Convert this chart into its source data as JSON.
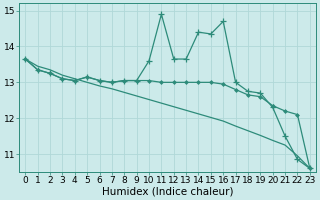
{
  "x": [
    0,
    1,
    2,
    3,
    4,
    5,
    6,
    7,
    8,
    9,
    10,
    11,
    12,
    13,
    14,
    15,
    16,
    17,
    18,
    19,
    20,
    21,
    22,
    23
  ],
  "line1": [
    13.65,
    13.35,
    13.25,
    13.1,
    13.05,
    13.15,
    13.05,
    13.0,
    13.05,
    13.05,
    13.6,
    14.9,
    13.65,
    13.65,
    14.4,
    14.35,
    14.7,
    13.0,
    12.75,
    12.7,
    12.3,
    11.5,
    10.85,
    10.6
  ],
  "line2": [
    13.65,
    13.35,
    13.25,
    13.1,
    13.05,
    13.15,
    13.05,
    13.0,
    13.05,
    13.05,
    13.05,
    13.0,
    13.0,
    13.0,
    13.0,
    13.0,
    12.95,
    12.8,
    12.65,
    12.6,
    12.35,
    12.2,
    12.1,
    10.6
  ],
  "line3": [
    13.65,
    13.45,
    13.35,
    13.2,
    13.1,
    13.0,
    12.9,
    12.82,
    12.72,
    12.62,
    12.52,
    12.42,
    12.32,
    12.22,
    12.12,
    12.02,
    11.92,
    11.78,
    11.65,
    11.52,
    11.38,
    11.25,
    10.95,
    10.6
  ],
  "color": "#2d8b7a",
  "bg_color": "#cceaea",
  "grid_color": "#b0d8d8",
  "xlabel": "Humidex (Indice chaleur)",
  "ylim": [
    10.5,
    15.2
  ],
  "xlim": [
    -0.5,
    23.5
  ],
  "yticks": [
    11,
    12,
    13,
    14,
    15
  ],
  "xticks": [
    0,
    1,
    2,
    3,
    4,
    5,
    6,
    7,
    8,
    9,
    10,
    11,
    12,
    13,
    14,
    15,
    16,
    17,
    18,
    19,
    20,
    21,
    22,
    23
  ],
  "xtick_labels": [
    "0",
    "1",
    "2",
    "3",
    "4",
    "5",
    "6",
    "7",
    "8",
    "9",
    "10",
    "11",
    "12",
    "13",
    "14",
    "15",
    "16",
    "17",
    "18",
    "19",
    "20",
    "21",
    "22",
    "23"
  ],
  "font_size": 6.5,
  "xlabel_fontsize": 7.5,
  "marker_size": 2.5,
  "line_width": 0.9
}
